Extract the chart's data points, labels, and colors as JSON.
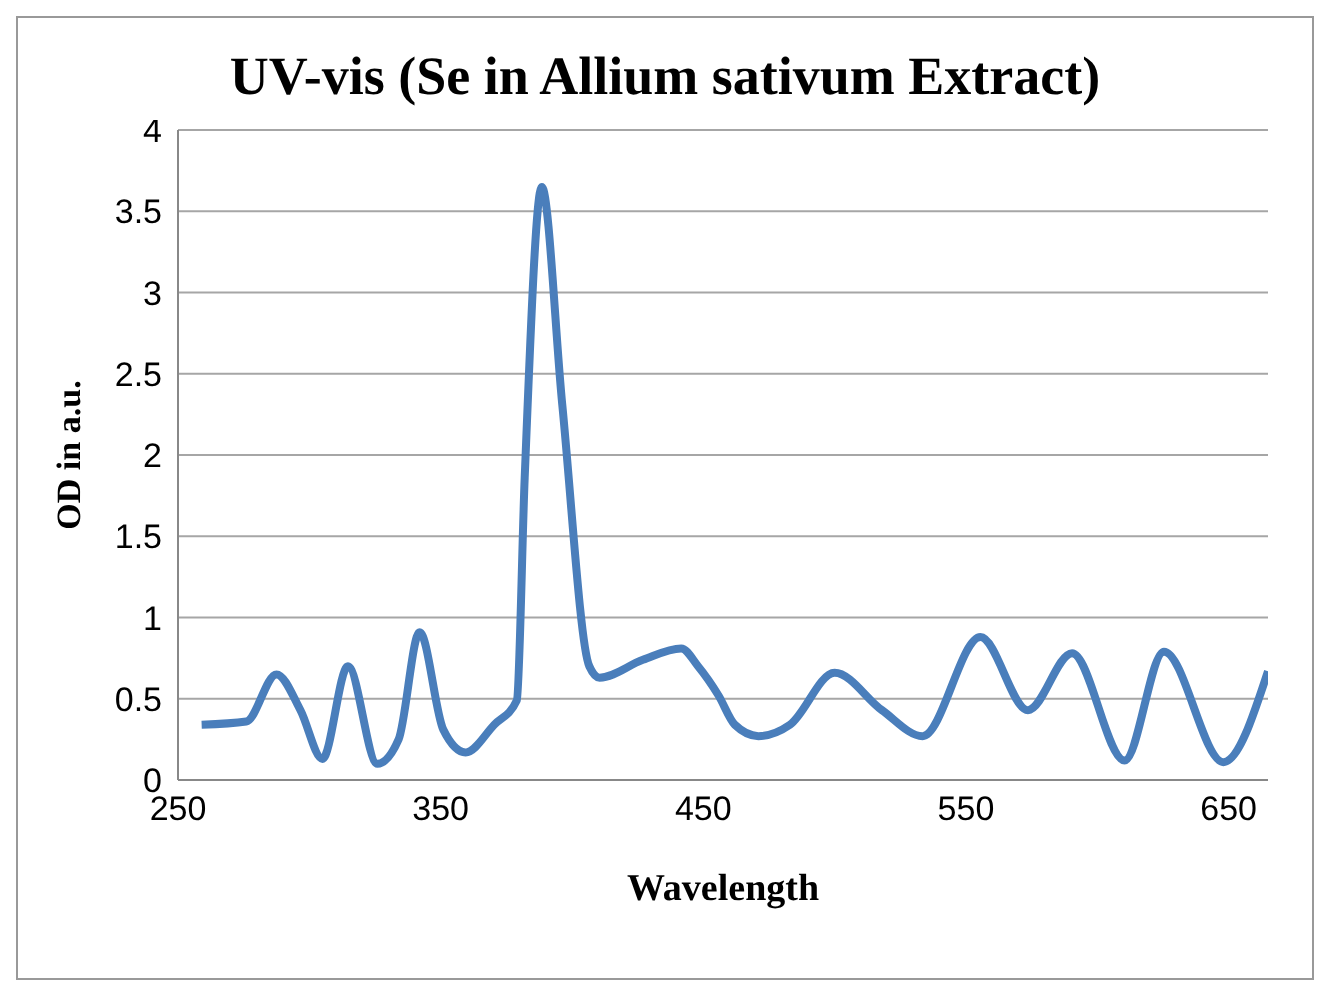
{
  "chart_data": {
    "type": "line",
    "title": "UV-vis (Se in Allium sativum Extract)",
    "xlabel": "Wavelength",
    "ylabel": "OD in a.u.",
    "xlim": [
      250,
      665
    ],
    "xticks": [
      250,
      350,
      450,
      550,
      650
    ],
    "ylim": [
      0,
      4
    ],
    "yticks": [
      0,
      0.5,
      1,
      1.5,
      2,
      2.5,
      3,
      3.5,
      4
    ],
    "grid": "y",
    "marker": "none",
    "line_style": "solid",
    "series": [
      {
        "color": "#4a7ebb",
        "x": [
          259,
          276,
          287.5,
          296.6,
          305,
          314.7,
          325.9,
          334,
          342,
          351,
          359.5,
          370.4,
          379,
          382,
          388.5,
          396.3,
          406.6,
          410.5,
          427,
          441.6,
          448,
          455.8,
          462,
          471,
          483,
          500,
          518,
          533.5,
          555.5,
          573.6,
          590.4,
          610.4,
          625.4,
          648,
          665
        ],
        "values": [
          0.34,
          0.36,
          0.65,
          0.43,
          0.13,
          0.7,
          0.1,
          0.25,
          0.91,
          0.31,
          0.17,
          0.34,
          0.49,
          1.86,
          3.65,
          2.31,
          0.7,
          0.63,
          0.74,
          0.81,
          0.7,
          0.52,
          0.34,
          0.27,
          0.34,
          0.66,
          0.43,
          0.27,
          0.88,
          0.43,
          0.78,
          0.12,
          0.79,
          0.11,
          0.67
        ]
      }
    ]
  }
}
